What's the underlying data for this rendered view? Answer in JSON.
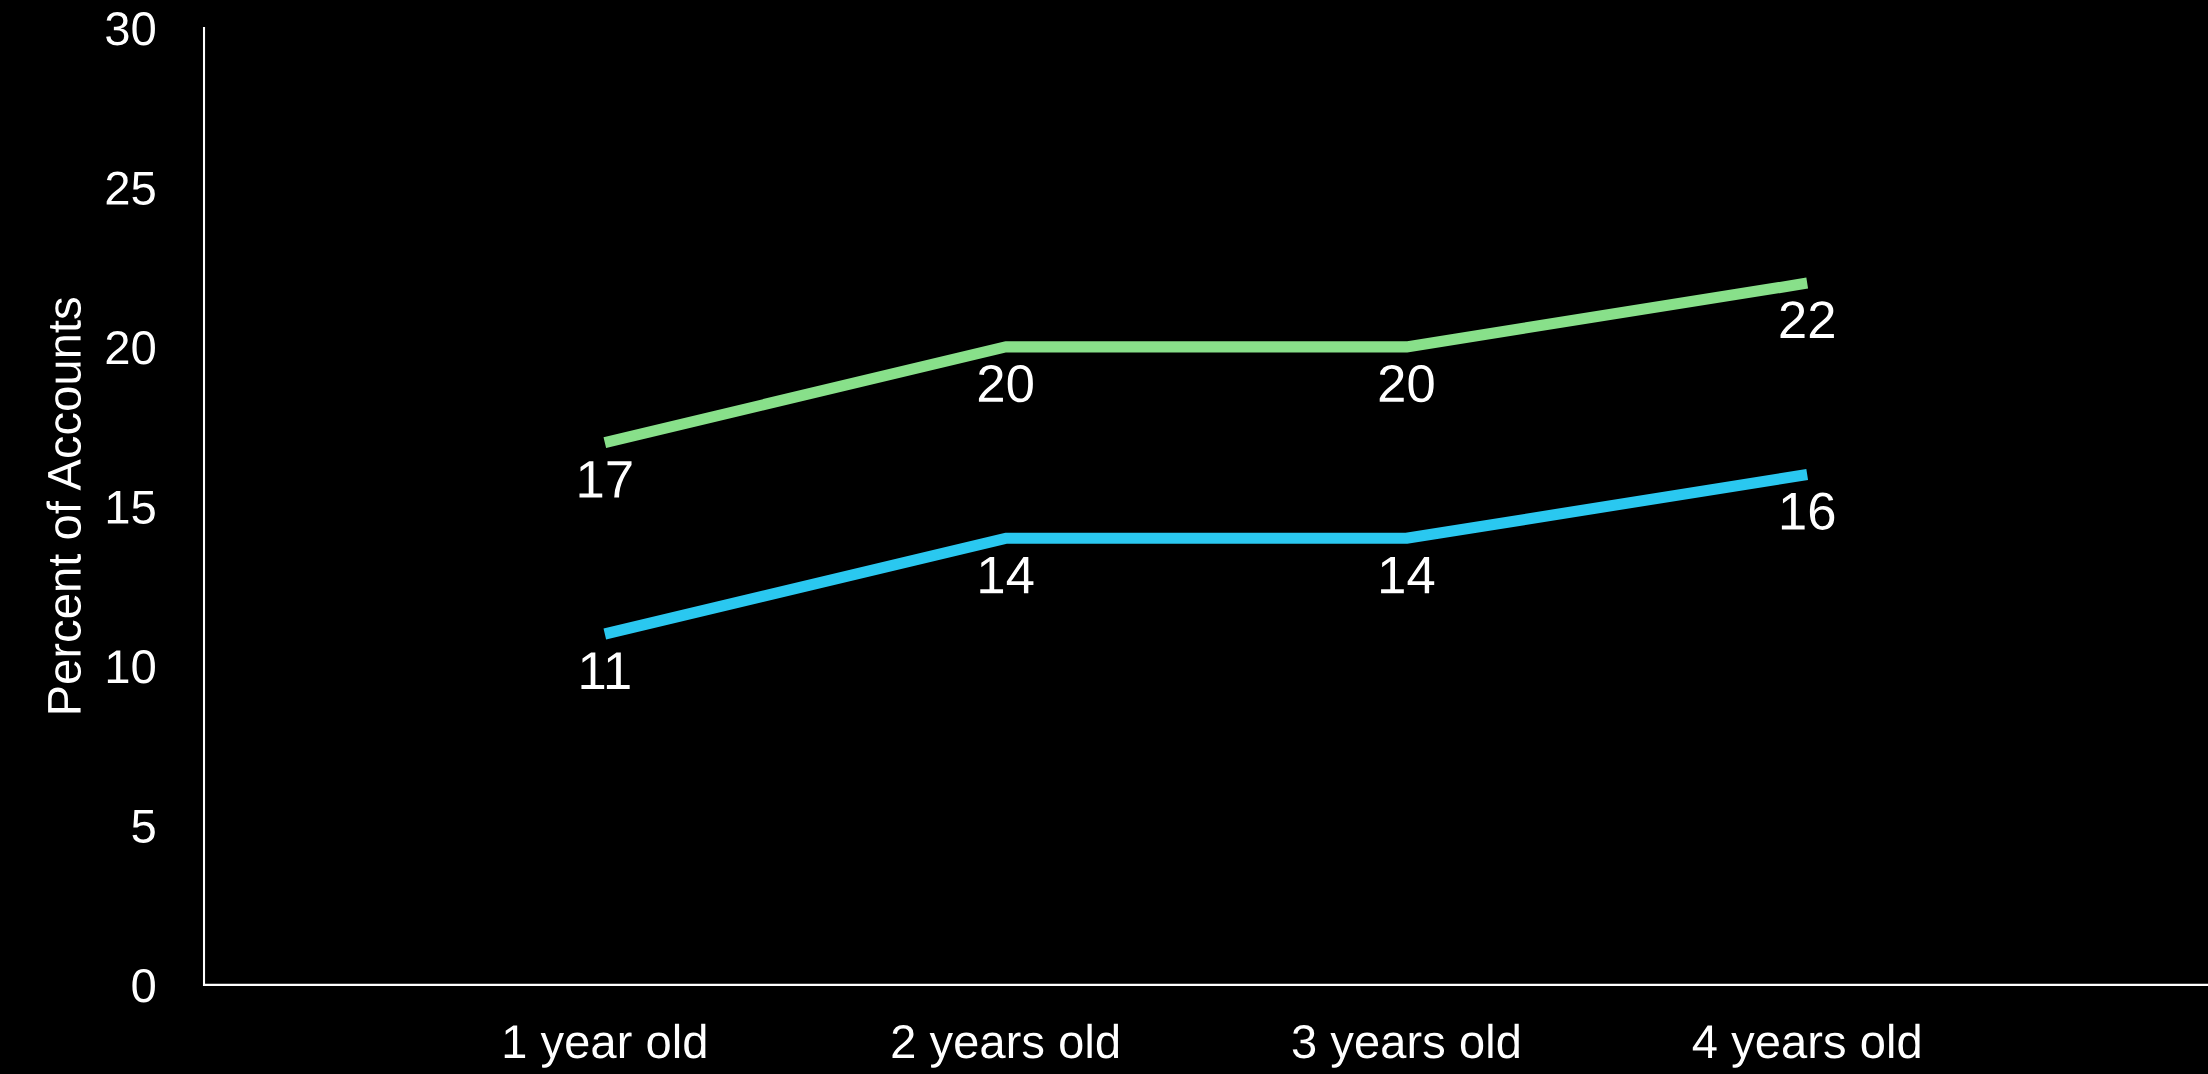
{
  "chart_data": {
    "type": "line",
    "ylabel": "Percent of Accounts",
    "categories": [
      "1 year old",
      "2 years old",
      "3 years old",
      "4 years old"
    ],
    "series": [
      {
        "color": "#88e08a",
        "values": [
          17,
          20,
          20,
          22
        ]
      },
      {
        "color": "#2ac8f0",
        "values": [
          11,
          14,
          14,
          16
        ]
      }
    ],
    "ylim": [
      0,
      30
    ],
    "yticks": [
      0,
      5,
      10,
      15,
      20,
      25,
      30
    ],
    "grid": false,
    "marker": "none",
    "line_style": "solid",
    "data_labels": true
  }
}
